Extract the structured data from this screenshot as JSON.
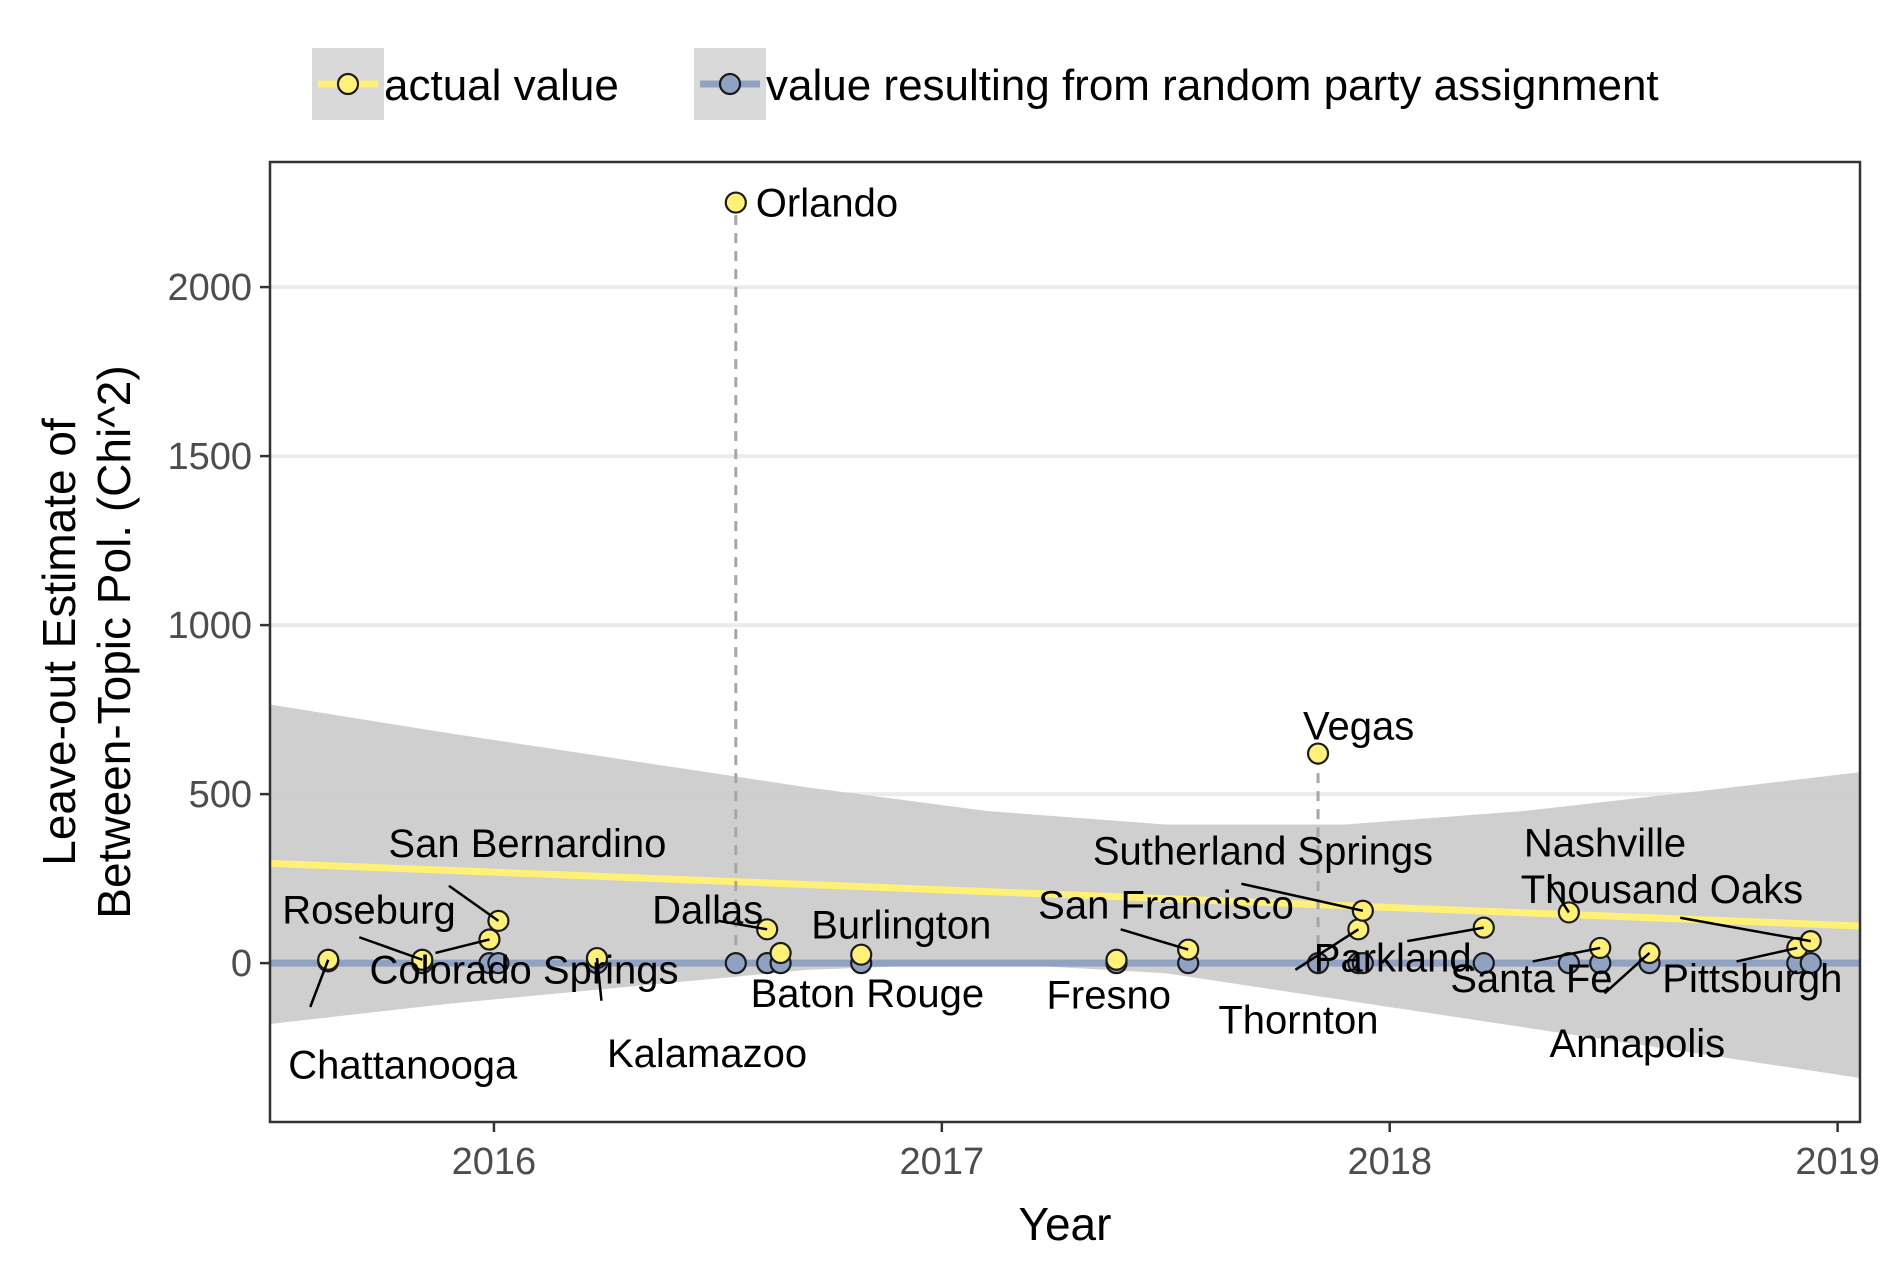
{
  "chart_data": {
    "type": "scatter",
    "title": "",
    "xlabel": "Year",
    "ylabel": [
      "Leave-out Estimate of",
      "Between-Topic Pol. (Chi^2)"
    ],
    "xlim": [
      2015.5,
      2019.05
    ],
    "ylim": [
      -470,
      2370
    ],
    "x_ticks": [
      2016,
      2017,
      2018,
      2019
    ],
    "y_ticks": [
      0,
      500,
      1000,
      1500,
      2000
    ],
    "grid": "horizontal",
    "legend_position": "top",
    "series": [
      {
        "name": "actual value",
        "color": "#fff176",
        "points": [
          {
            "x": 2015.63,
            "y": 10,
            "label": "Chattanooga"
          },
          {
            "x": 2015.84,
            "y": 10,
            "label": "Roseburg"
          },
          {
            "x": 2015.99,
            "y": 70,
            "label": "Colorado Springs"
          },
          {
            "x": 2016.01,
            "y": 125,
            "label": "San Bernardino"
          },
          {
            "x": 2016.23,
            "y": 15,
            "label": "Kalamazoo"
          },
          {
            "x": 2016.54,
            "y": 2250,
            "label": "Orlando"
          },
          {
            "x": 2016.61,
            "y": 100,
            "label": "Dallas"
          },
          {
            "x": 2016.64,
            "y": 30,
            "label": "Baton Rouge"
          },
          {
            "x": 2016.82,
            "y": 25,
            "label": "Burlington"
          },
          {
            "x": 2017.39,
            "y": 10,
            "label": "Fresno"
          },
          {
            "x": 2017.55,
            "y": 40,
            "label": "San Francisco"
          },
          {
            "x": 2017.84,
            "y": 620,
            "label": "Vegas"
          },
          {
            "x": 2017.93,
            "y": 100,
            "label": "Thornton"
          },
          {
            "x": 2017.94,
            "y": 155,
            "label": "Sutherland Springs"
          },
          {
            "x": 2018.21,
            "y": 105,
            "label": "Parkland"
          },
          {
            "x": 2018.4,
            "y": 150,
            "label": "Nashville"
          },
          {
            "x": 2018.47,
            "y": 45,
            "label": "Santa Fe"
          },
          {
            "x": 2018.58,
            "y": 30,
            "label": "Annapolis"
          },
          {
            "x": 2018.91,
            "y": 45,
            "label": "Pittsburgh"
          },
          {
            "x": 2018.94,
            "y": 65,
            "label": "Thousand Oaks"
          }
        ],
        "trend": {
          "x": [
            2015.5,
            2019.05
          ],
          "y": [
            295,
            110
          ]
        }
      },
      {
        "name": "value resulting from random party assignment",
        "color": "#8fa2c2",
        "points": [
          {
            "x": 2015.63,
            "y": 5
          },
          {
            "x": 2015.84,
            "y": 0
          },
          {
            "x": 2015.99,
            "y": 0
          },
          {
            "x": 2016.01,
            "y": 0
          },
          {
            "x": 2016.23,
            "y": 0
          },
          {
            "x": 2016.54,
            "y": 0
          },
          {
            "x": 2016.61,
            "y": 0
          },
          {
            "x": 2016.64,
            "y": 0
          },
          {
            "x": 2016.82,
            "y": 0
          },
          {
            "x": 2017.39,
            "y": 0
          },
          {
            "x": 2017.55,
            "y": 0
          },
          {
            "x": 2017.84,
            "y": 0
          },
          {
            "x": 2017.93,
            "y": 0
          },
          {
            "x": 2017.94,
            "y": 0
          },
          {
            "x": 2018.21,
            "y": 0
          },
          {
            "x": 2018.4,
            "y": 0
          },
          {
            "x": 2018.47,
            "y": 0
          },
          {
            "x": 2018.58,
            "y": 0
          },
          {
            "x": 2018.91,
            "y": 0
          },
          {
            "x": 2018.94,
            "y": 0
          }
        ],
        "trend": {
          "x": [
            2015.5,
            2019.05
          ],
          "y": [
            0,
            0
          ]
        }
      }
    ],
    "confidence_band": {
      "color": "#cccccc",
      "x": [
        2015.5,
        2015.9,
        2016.3,
        2016.7,
        2017.1,
        2017.5,
        2017.9,
        2018.3,
        2018.7,
        2019.05
      ],
      "upper": [
        765,
        680,
        600,
        520,
        450,
        410,
        410,
        450,
        510,
        565
      ],
      "lower": [
        -180,
        -120,
        -70,
        -20,
        0,
        -30,
        -110,
        -190,
        -270,
        -340
      ]
    },
    "vertical_dashes": [
      {
        "x": 2016.54,
        "from": 0,
        "to": 2250
      },
      {
        "x": 2017.84,
        "from": 0,
        "to": 620
      }
    ]
  }
}
